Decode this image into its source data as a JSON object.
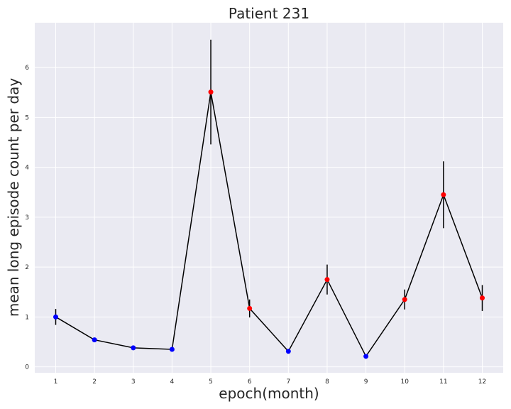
{
  "chart_data": {
    "type": "line",
    "title": "Patient 231",
    "xlabel": "epoch(month)",
    "ylabel": "mean long episode count per day",
    "x": [
      1,
      2,
      3,
      4,
      5,
      6,
      7,
      8,
      9,
      10,
      11,
      12
    ],
    "y": [
      1.0,
      0.54,
      0.38,
      0.35,
      5.51,
      1.17,
      0.31,
      1.75,
      0.21,
      1.35,
      3.45,
      1.38
    ],
    "error": [
      0.16,
      0.04,
      0.03,
      0.03,
      1.05,
      0.18,
      0.04,
      0.3,
      0.03,
      0.2,
      0.67,
      0.26
    ],
    "point_colors": [
      "#0000ff",
      "#0000ff",
      "#0000ff",
      "#0000ff",
      "#ff0000",
      "#ff0000",
      "#0000ff",
      "#ff0000",
      "#0000ff",
      "#ff0000",
      "#ff0000",
      "#ff0000"
    ],
    "x_ticks": [
      "1",
      "2",
      "3",
      "4",
      "5",
      "6",
      "7",
      "8",
      "9",
      "10",
      "11",
      "12"
    ],
    "y_ticks": [
      0,
      1,
      2,
      3,
      4,
      5,
      6
    ],
    "xlim": [
      0.46,
      12.54
    ],
    "ylim": [
      -0.12,
      6.9
    ],
    "grid": true,
    "line_color": "#000000",
    "background_color": "#eaeaf2"
  }
}
